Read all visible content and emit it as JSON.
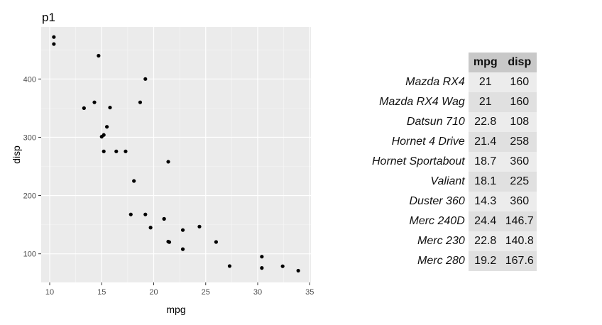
{
  "chart_data": {
    "type": "scatter",
    "title": "p1",
    "xlabel": "mpg",
    "ylabel": "disp",
    "xlim": [
      9.18,
      35.12
    ],
    "ylim": [
      50.91,
      489.29
    ],
    "x_ticks": [
      10,
      15,
      20,
      25,
      30,
      35
    ],
    "y_ticks": [
      100,
      200,
      300,
      400
    ],
    "grid": true,
    "points": [
      {
        "x": 21,
        "y": 160
      },
      {
        "x": 21,
        "y": 160
      },
      {
        "x": 22.8,
        "y": 108
      },
      {
        "x": 21.4,
        "y": 258
      },
      {
        "x": 18.7,
        "y": 360
      },
      {
        "x": 18.1,
        "y": 225
      },
      {
        "x": 14.3,
        "y": 360
      },
      {
        "x": 24.4,
        "y": 146.7
      },
      {
        "x": 22.8,
        "y": 140.8
      },
      {
        "x": 19.2,
        "y": 167.6
      },
      {
        "x": 17.8,
        "y": 167.6
      },
      {
        "x": 16.4,
        "y": 275.8
      },
      {
        "x": 17.3,
        "y": 275.8
      },
      {
        "x": 15.2,
        "y": 275.8
      },
      {
        "x": 10.4,
        "y": 472
      },
      {
        "x": 10.4,
        "y": 460
      },
      {
        "x": 14.7,
        "y": 440
      },
      {
        "x": 32.4,
        "y": 78.7
      },
      {
        "x": 30.4,
        "y": 75.7
      },
      {
        "x": 33.9,
        "y": 71.1
      },
      {
        "x": 21.5,
        "y": 120.1
      },
      {
        "x": 15.5,
        "y": 318
      },
      {
        "x": 15.2,
        "y": 304
      },
      {
        "x": 13.3,
        "y": 350
      },
      {
        "x": 19.2,
        "y": 400
      },
      {
        "x": 27.3,
        "y": 79
      },
      {
        "x": 26,
        "y": 120.3
      },
      {
        "x": 30.4,
        "y": 95.1
      },
      {
        "x": 15.8,
        "y": 351
      },
      {
        "x": 19.7,
        "y": 145
      },
      {
        "x": 15,
        "y": 301
      },
      {
        "x": 21.4,
        "y": 121
      }
    ]
  },
  "table": {
    "headers": [
      "mpg",
      "disp"
    ],
    "rows": [
      {
        "name": "Mazda RX4",
        "mpg": "21",
        "disp": "160"
      },
      {
        "name": "Mazda RX4 Wag",
        "mpg": "21",
        "disp": "160"
      },
      {
        "name": "Datsun 710",
        "mpg": "22.8",
        "disp": "108"
      },
      {
        "name": "Hornet 4 Drive",
        "mpg": "21.4",
        "disp": "258"
      },
      {
        "name": "Hornet Sportabout",
        "mpg": "18.7",
        "disp": "360"
      },
      {
        "name": "Valiant",
        "mpg": "18.1",
        "disp": "225"
      },
      {
        "name": "Duster 360",
        "mpg": "14.3",
        "disp": "360"
      },
      {
        "name": "Merc 240D",
        "mpg": "24.4",
        "disp": "146.7"
      },
      {
        "name": "Merc 230",
        "mpg": "22.8",
        "disp": "140.8"
      },
      {
        "name": "Merc 280",
        "mpg": "19.2",
        "disp": "167.6"
      }
    ]
  }
}
